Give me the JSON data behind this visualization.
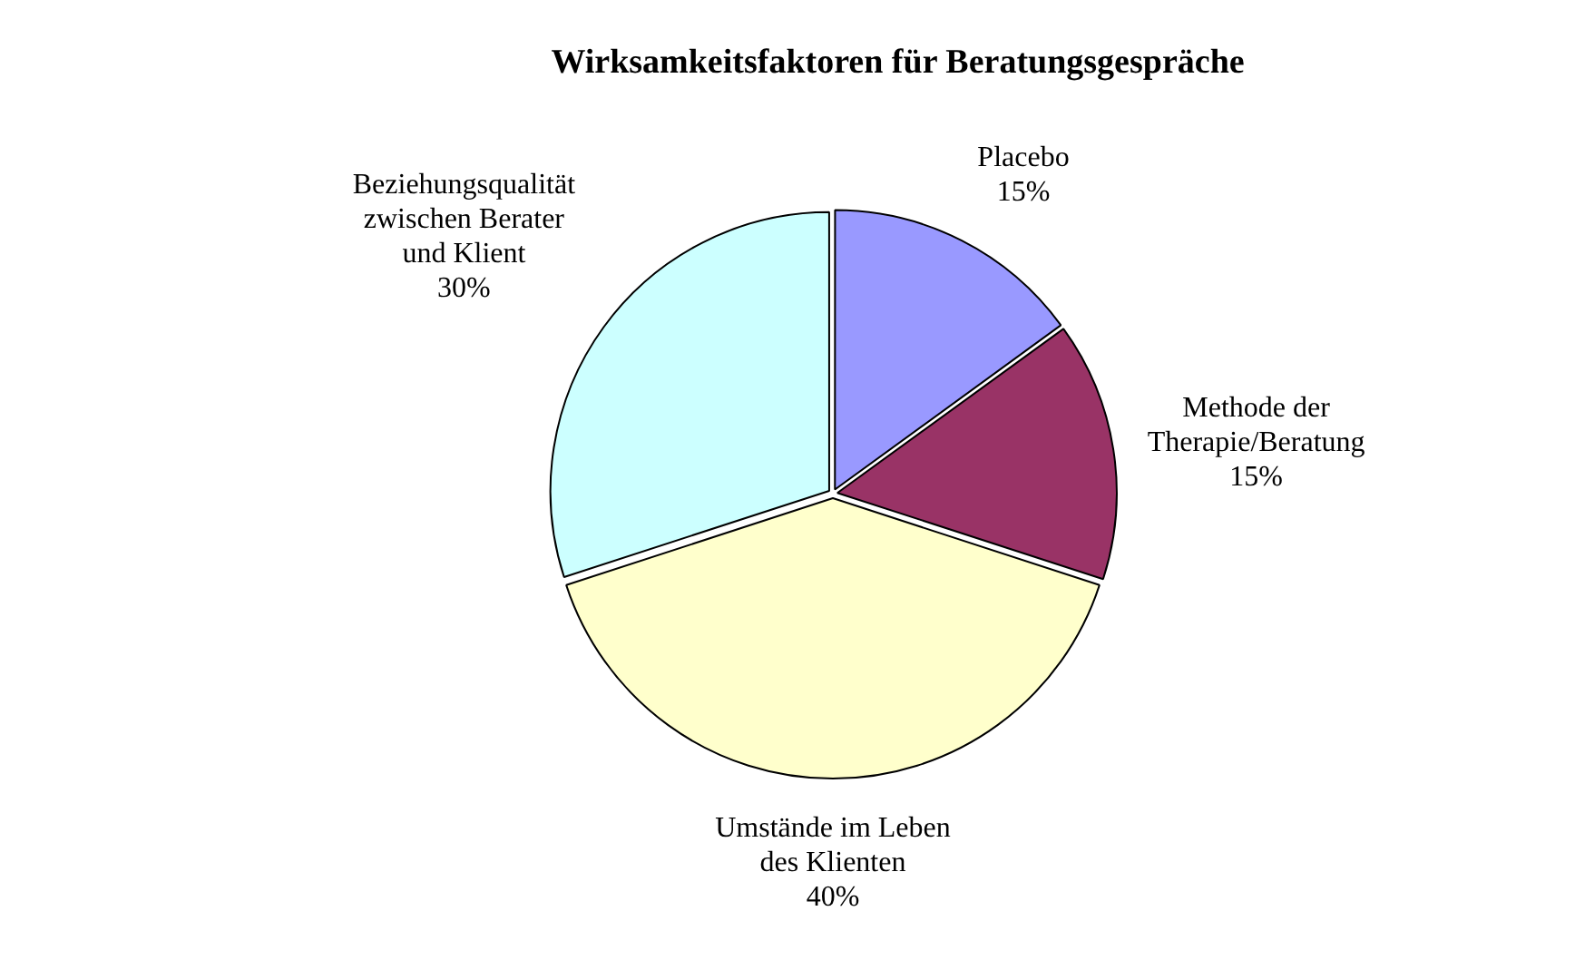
{
  "chart_data": {
    "type": "pie",
    "title": "Wirksamkeitsfaktoren für Beratungsgespräche",
    "categories": [
      "Placebo",
      "Methode der Therapie/Beratung",
      "Umstände im Leben des Klienten",
      "Beziehungsqualität zwischen Berater und Klient"
    ],
    "values": [
      15,
      15,
      40,
      30
    ],
    "colors": [
      "#9999ff",
      "#993366",
      "#ffffcc",
      "#ccffff"
    ],
    "value_labels": [
      "15%",
      "15%",
      "40%",
      "30%"
    ]
  }
}
